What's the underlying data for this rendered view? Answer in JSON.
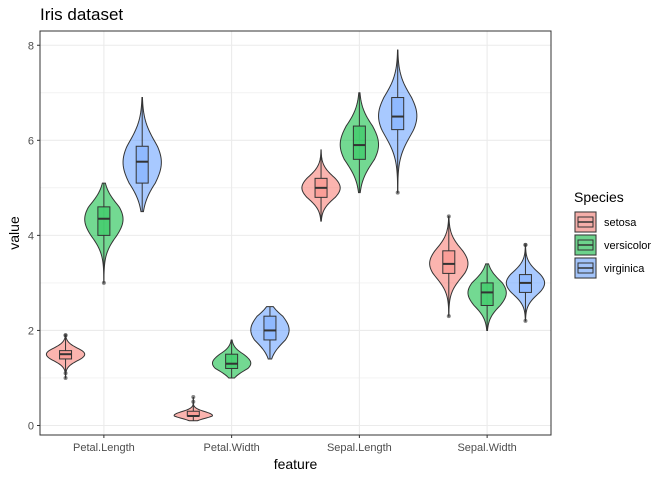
{
  "chart_data": {
    "type": "violin",
    "title": "Iris dataset",
    "xlabel": "feature",
    "ylabel": "value",
    "ylim": [
      -0.2,
      8.3
    ],
    "y_ticks": [
      0,
      2,
      4,
      6,
      8
    ],
    "grid": true,
    "legend": {
      "title": "Species",
      "position": "right"
    },
    "categories": [
      "Petal.Length",
      "Petal.Width",
      "Sepal.Length",
      "Sepal.Width"
    ],
    "series": [
      {
        "name": "setosa",
        "color": "#F8766D",
        "stats": [
          {
            "min": 1.0,
            "q1": 1.4,
            "median": 1.5,
            "q3": 1.575,
            "max": 1.9,
            "outliers": [
              1.0,
              1.1,
              1.9,
              1.9
            ]
          },
          {
            "min": 0.1,
            "q1": 0.2,
            "median": 0.2,
            "q3": 0.3,
            "max": 0.6,
            "outliers": [
              0.5,
              0.6
            ]
          },
          {
            "min": 4.3,
            "q1": 4.8,
            "median": 5.0,
            "q3": 5.2,
            "max": 5.8,
            "outliers": []
          },
          {
            "min": 2.3,
            "q1": 3.2,
            "median": 3.4,
            "q3": 3.675,
            "max": 4.4,
            "outliers": [
              2.3,
              4.4
            ]
          }
        ]
      },
      {
        "name": "versicolor",
        "color": "#00BA38",
        "stats": [
          {
            "min": 3.0,
            "q1": 4.0,
            "median": 4.35,
            "q3": 4.6,
            "max": 5.1,
            "outliers": [
              3.0
            ]
          },
          {
            "min": 1.0,
            "q1": 1.2,
            "median": 1.3,
            "q3": 1.5,
            "max": 1.8,
            "outliers": []
          },
          {
            "min": 4.9,
            "q1": 5.6,
            "median": 5.9,
            "q3": 6.3,
            "max": 7.0,
            "outliers": []
          },
          {
            "min": 2.0,
            "q1": 2.525,
            "median": 2.8,
            "q3": 3.0,
            "max": 3.4,
            "outliers": []
          }
        ]
      },
      {
        "name": "virginica",
        "color": "#619CFF",
        "stats": [
          {
            "min": 4.5,
            "q1": 5.1,
            "median": 5.55,
            "q3": 5.875,
            "max": 6.9,
            "outliers": []
          },
          {
            "min": 1.4,
            "q1": 1.8,
            "median": 2.0,
            "q3": 2.3,
            "max": 2.5,
            "outliers": []
          },
          {
            "min": 4.9,
            "q1": 6.225,
            "median": 6.5,
            "q3": 6.9,
            "max": 7.9,
            "outliers": [
              4.9
            ]
          },
          {
            "min": 2.2,
            "q1": 2.8,
            "median": 3.0,
            "q3": 3.175,
            "max": 3.8,
            "outliers": [
              2.2,
              3.8,
              3.8
            ]
          }
        ]
      }
    ]
  }
}
